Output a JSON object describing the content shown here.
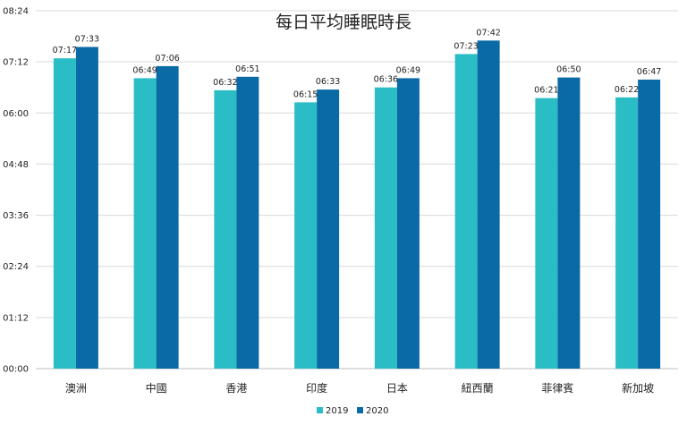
{
  "chart_data": {
    "type": "bar",
    "title": "每日平均睡眠時長",
    "xlabel": "",
    "ylabel": "",
    "ylim_minutes": [
      0,
      504
    ],
    "ytick_labels": [
      "00:00",
      "01:12",
      "02:24",
      "03:36",
      "04:48",
      "06:00",
      "07:12",
      "08:24"
    ],
    "categories": [
      "澳洲",
      "中國",
      "香港",
      "印度",
      "日本",
      "紐西蘭",
      "菲律賓",
      "新加坡"
    ],
    "series": [
      {
        "name": "2019",
        "color": "#2bbdc6",
        "values_minutes": [
          437,
          409,
          392,
          375,
          396,
          443,
          381,
          382
        ],
        "labels": [
          "07:17",
          "06:49",
          "06:32",
          "06:15",
          "06:36",
          "07:23",
          "06:21",
          "06:22"
        ]
      },
      {
        "name": "2020",
        "color": "#0a6aa6",
        "values_minutes": [
          453,
          426,
          411,
          393,
          409,
          462,
          410,
          407
        ],
        "labels": [
          "07:33",
          "07:06",
          "06:51",
          "06:33",
          "06:49",
          "07:42",
          "06:50",
          "06:47"
        ]
      }
    ],
    "grid": true,
    "legend_position": "bottom"
  }
}
